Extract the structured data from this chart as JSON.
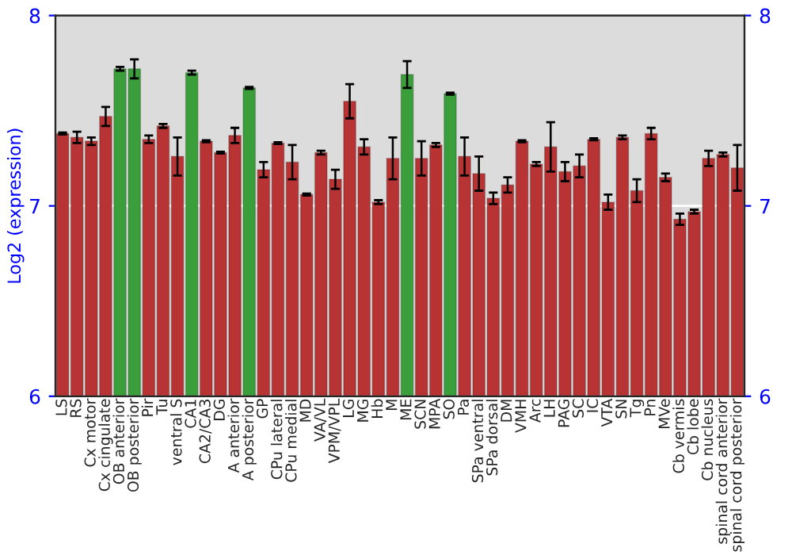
{
  "chart_data": {
    "type": "bar",
    "ylabel": "Log2 (expression)",
    "categories": [
      "LS",
      "RS",
      "Cx motor",
      "Cx cingulate",
      "OB anterior",
      "OB posterior",
      "Pir",
      "Tu",
      "ventral S",
      "CA1",
      "CA2/CA3",
      "DG",
      "A anterior",
      "A posterior",
      "GP",
      "CPu lateral",
      "CPu medial",
      "MD",
      "VA/VL",
      "VPM/VPL",
      "LG",
      "MG",
      "Hb",
      "M",
      "ME",
      "SCN",
      "MPA",
      "SO",
      "Pa",
      "SPa ventral",
      "SPa dorsal",
      "DM",
      "VMH",
      "Arc",
      "LH",
      "PAG",
      "SC",
      "IC",
      "VTA",
      "SN",
      "Tg",
      "Pn",
      "MVe",
      "Cb vermis",
      "Cb lobe",
      "Cb nucleus",
      "spinal cord anterior",
      "spinal cord posterior"
    ],
    "values": [
      7.38,
      7.36,
      7.34,
      7.47,
      7.72,
      7.72,
      7.35,
      7.42,
      7.26,
      7.7,
      7.34,
      7.28,
      7.37,
      7.62,
      7.19,
      7.33,
      7.23,
      7.06,
      7.28,
      7.14,
      7.55,
      7.31,
      7.02,
      7.25,
      7.69,
      7.25,
      7.32,
      7.59,
      7.26,
      7.17,
      7.04,
      7.11,
      7.34,
      7.22,
      7.31,
      7.18,
      7.21,
      7.35,
      7.02,
      7.36,
      7.08,
      7.38,
      7.15,
      6.93,
      6.97,
      7.25,
      7.27,
      7.2
    ],
    "errors": [
      0.005,
      0.03,
      0.02,
      0.05,
      0.01,
      0.05,
      0.02,
      0.01,
      0.1,
      0.01,
      0.005,
      0.005,
      0.04,
      0.005,
      0.04,
      0.005,
      0.09,
      0.005,
      0.01,
      0.05,
      0.09,
      0.04,
      0.01,
      0.11,
      0.07,
      0.09,
      0.01,
      0.005,
      0.1,
      0.09,
      0.03,
      0.04,
      0.005,
      0.01,
      0.13,
      0.05,
      0.06,
      0.005,
      0.04,
      0.01,
      0.06,
      0.03,
      0.02,
      0.03,
      0.01,
      0.04,
      0.01,
      0.12
    ],
    "colors": [
      "#b83434",
      "#b83434",
      "#b83434",
      "#b83434",
      "#3a9e3a",
      "#3a9e3a",
      "#b83434",
      "#b83434",
      "#b83434",
      "#3a9e3a",
      "#b83434",
      "#b83434",
      "#b83434",
      "#3a9e3a",
      "#b83434",
      "#b83434",
      "#b83434",
      "#b83434",
      "#b83434",
      "#b83434",
      "#b83434",
      "#b83434",
      "#b83434",
      "#b83434",
      "#3a9e3a",
      "#b83434",
      "#b83434",
      "#3a9e3a",
      "#b83434",
      "#b83434",
      "#b83434",
      "#b83434",
      "#b83434",
      "#b83434",
      "#b83434",
      "#b83434",
      "#b83434",
      "#b83434",
      "#b83434",
      "#b83434",
      "#b83434",
      "#b83434",
      "#b83434",
      "#b83434",
      "#b83434",
      "#b83434",
      "#b83434",
      "#b83434"
    ],
    "ylim": [
      6,
      8
    ],
    "yticks": [
      6,
      7,
      8
    ],
    "y2lim": [
      6,
      8
    ],
    "y2ticks": [
      6,
      7,
      8
    ],
    "grid": "y"
  }
}
